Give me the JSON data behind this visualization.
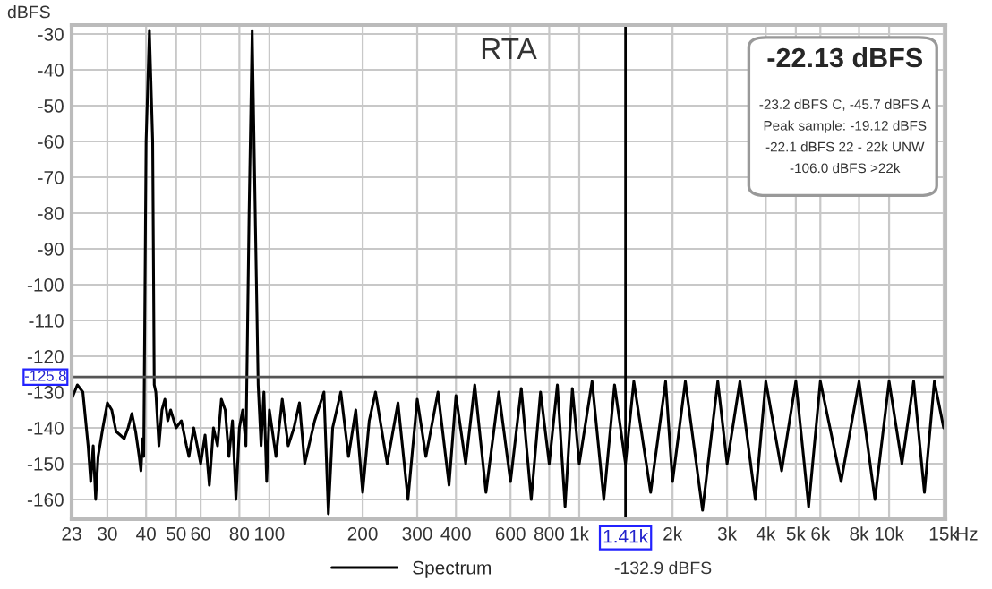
{
  "chart_data": {
    "type": "line",
    "title": "RTA",
    "ylabel": "dBFS",
    "xlabel": "Hz",
    "annotations": [
      "-22.13 dBFS",
      "-23.2 dBFS C, -45.7 dBFS A",
      "Peak sample: -19.12 dBFS",
      "-22.1 dBFS 22 - 22k UNW",
      "-106.0 dBFS >22k",
      "-132.9 dBFS"
    ],
    "series": [
      {
        "name": "Spectrum",
        "color": "#000000",
        "x": [
          23,
          24,
          25,
          26,
          26.5,
          27,
          27.5,
          28,
          29,
          30,
          31,
          32,
          33,
          34,
          35,
          36,
          37,
          38,
          38.5,
          39,
          39.3,
          40,
          41,
          42,
          42.5,
          43,
          44,
          45,
          46,
          47,
          48,
          50,
          52,
          54,
          55,
          57,
          60,
          62,
          64,
          66,
          68,
          70,
          72,
          74,
          76,
          78,
          80,
          82,
          84,
          86,
          88,
          90,
          92,
          94,
          96,
          98,
          100,
          105,
          110,
          115,
          120,
          125,
          130,
          140,
          150,
          155,
          160,
          170,
          180,
          190,
          200,
          210,
          220,
          240,
          260,
          280,
          300,
          320,
          350,
          380,
          400,
          430,
          460,
          500,
          550,
          600,
          650,
          700,
          750,
          800,
          850,
          900,
          950,
          1000,
          1100,
          1200,
          1300,
          1410,
          1500,
          1700,
          1900,
          2000,
          2200,
          2500,
          2800,
          3000,
          3300,
          3700,
          4000,
          4500,
          5000,
          5500,
          6000,
          7000,
          8000,
          9000,
          10000,
          11000,
          12000,
          13000,
          14000,
          15000
        ],
        "values": [
          -132,
          -128,
          -130,
          -145,
          -155,
          -145,
          -160,
          -148,
          -140,
          -133,
          -135,
          -141,
          -142,
          -143,
          -140,
          -136,
          -141,
          -148,
          -152,
          -143,
          -148,
          -60,
          -29,
          -60,
          -128,
          -130,
          -145,
          -135,
          -132,
          -138,
          -135,
          -140,
          -138,
          -145,
          -148,
          -140,
          -150,
          -142,
          -156,
          -140,
          -145,
          -132,
          -135,
          -148,
          -138,
          -160,
          -140,
          -135,
          -145,
          -80,
          -29,
          -80,
          -128,
          -145,
          -130,
          -155,
          -135,
          -148,
          -132,
          -145,
          -140,
          -133,
          -150,
          -138,
          -130,
          -164,
          -140,
          -130,
          -148,
          -135,
          -158,
          -138,
          -130,
          -150,
          -133,
          -160,
          -132,
          -148,
          -130,
          -156,
          -131,
          -150,
          -128,
          -158,
          -130,
          -155,
          -129,
          -160,
          -130,
          -150,
          -128,
          -162,
          -129,
          -150,
          -127,
          -160,
          -128,
          -150,
          -127,
          -158,
          -127,
          -155,
          -127,
          -163,
          -127,
          -150,
          -127,
          -160,
          -127,
          -152,
          -127,
          -162,
          -127,
          -155,
          -127,
          -160,
          -127,
          -150,
          -127,
          -158,
          -127,
          -140
        ]
      }
    ],
    "log": "x",
    "xlim": [
      23,
      15200
    ],
    "ylim": [
      -165.5,
      -27.5
    ],
    "xticks": [
      23,
      30,
      40,
      50,
      60,
      80,
      100,
      200,
      300,
      400,
      600,
      800,
      {
        "value": 1000,
        "label": "1k"
      },
      {
        "value": 2000,
        "label": "2k"
      },
      {
        "value": 3000,
        "label": "3k"
      },
      {
        "value": 4000,
        "label": "4k"
      },
      {
        "value": 5000,
        "label": "5k"
      },
      {
        "value": 6000,
        "label": "6k"
      },
      {
        "value": 8000,
        "label": "8k"
      },
      {
        "value": 10000,
        "label": "10k"
      },
      {
        "value": 15000,
        "label": "15k"
      }
    ],
    "yticks": [
      -30,
      -40,
      -50,
      -60,
      -70,
      -80,
      -90,
      -100,
      -110,
      -120,
      -130,
      -140,
      -150,
      -160
    ],
    "ref_lines": [
      {
        "axis": "y",
        "value": -125.8,
        "label": "-125.8",
        "color": "#555555"
      },
      {
        "axis": "x",
        "value": 1410,
        "label": "1.41k",
        "color": "#000000"
      }
    ],
    "grid": true,
    "legend": "bottom",
    "line_style": "solid",
    "marker": "none"
  }
}
